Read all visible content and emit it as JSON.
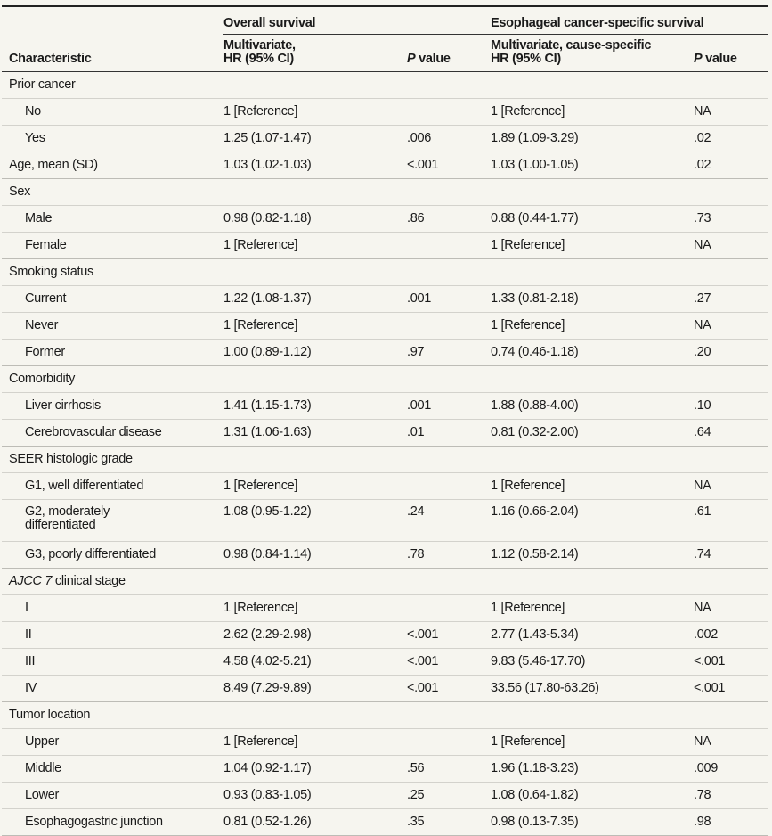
{
  "header": {
    "characteristic": "Characteristic",
    "overall_survival": "Overall survival",
    "ecss": "Esophageal cancer-specific survival",
    "os_hr": [
      "Multivariate,",
      "HR (95% CI)"
    ],
    "ecss_hr": [
      "Multivariate, cause-specific",
      "HR (95% CI)"
    ],
    "p_italic": "P",
    "p_rest": " value"
  },
  "rows": [
    {
      "label": "Prior cancer",
      "type": "group"
    },
    {
      "label": "No",
      "type": "item",
      "os_hr": "1 [Reference]",
      "os_p": "",
      "ec_hr": "1 [Reference]",
      "ec_p": "NA"
    },
    {
      "label": "Yes",
      "type": "item",
      "os_hr": "1.25 (1.07-1.47)",
      "os_p": ".006",
      "ec_hr": "1.89 (1.09-3.29)",
      "ec_p": ".02",
      "end": true
    },
    {
      "label": "Age, mean (SD)",
      "type": "single",
      "os_hr": "1.03 (1.02-1.03)",
      "os_p": "<.001",
      "ec_hr": "1.03 (1.00-1.05)",
      "ec_p": ".02",
      "end": true
    },
    {
      "label": "Sex",
      "type": "group"
    },
    {
      "label": "Male",
      "type": "item",
      "os_hr": "0.98 (0.82-1.18)",
      "os_p": ".86",
      "ec_hr": "0.88 (0.44-1.77)",
      "ec_p": ".73"
    },
    {
      "label": "Female",
      "type": "item",
      "os_hr": "1 [Reference]",
      "os_p": "",
      "ec_hr": "1 [Reference]",
      "ec_p": "NA",
      "end": true
    },
    {
      "label": "Smoking status",
      "type": "group"
    },
    {
      "label": "Current",
      "type": "item",
      "os_hr": "1.22 (1.08-1.37)",
      "os_p": ".001",
      "ec_hr": "1.33 (0.81-2.18)",
      "ec_p": ".27"
    },
    {
      "label": "Never",
      "type": "item",
      "os_hr": "1 [Reference]",
      "os_p": "",
      "ec_hr": "1 [Reference]",
      "ec_p": "NA"
    },
    {
      "label": "Former",
      "type": "item",
      "os_hr": "1.00 (0.89-1.12)",
      "os_p": ".97",
      "ec_hr": "0.74 (0.46-1.18)",
      "ec_p": ".20",
      "end": true
    },
    {
      "label": "Comorbidity",
      "type": "group"
    },
    {
      "label": "Liver cirrhosis",
      "type": "item",
      "os_hr": "1.41 (1.15-1.73)",
      "os_p": ".001",
      "ec_hr": "1.88 (0.88-4.00)",
      "ec_p": ".10"
    },
    {
      "label": "Cerebrovascular disease",
      "type": "item",
      "os_hr": "1.31 (1.06-1.63)",
      "os_p": ".01",
      "ec_hr": "0.81 (0.32-2.00)",
      "ec_p": ".64",
      "end": true
    },
    {
      "label": "SEER histologic grade",
      "type": "group"
    },
    {
      "label": "G1, well differentiated",
      "type": "item",
      "os_hr": "1 [Reference]",
      "os_p": "",
      "ec_hr": "1 [Reference]",
      "ec_p": "NA"
    },
    {
      "label": "G2, moderately differentiated",
      "type": "item",
      "tall": true,
      "os_hr": "1.08 (0.95-1.22)",
      "os_p": ".24",
      "ec_hr": "1.16 (0.66-2.04)",
      "ec_p": ".61"
    },
    {
      "label": "G3, poorly differentiated",
      "type": "item",
      "os_hr": "0.98 (0.84-1.14)",
      "os_p": ".78",
      "ec_hr": "1.12 (0.58-2.14)",
      "ec_p": ".74",
      "end": true
    },
    {
      "label_italic": "AJCC 7",
      "label": " clinical stage",
      "type": "group"
    },
    {
      "label": "I",
      "type": "item",
      "os_hr": "1 [Reference]",
      "os_p": "",
      "ec_hr": "1 [Reference]",
      "ec_p": "NA"
    },
    {
      "label": "II",
      "type": "item",
      "os_hr": "2.62 (2.29-2.98)",
      "os_p": "<.001",
      "ec_hr": "2.77 (1.43-5.34)",
      "ec_p": ".002"
    },
    {
      "label": "III",
      "type": "item",
      "os_hr": "4.58 (4.02-5.21)",
      "os_p": "<.001",
      "ec_hr": "9.83 (5.46-17.70)",
      "ec_p": "<.001"
    },
    {
      "label": "IV",
      "type": "item",
      "os_hr": "8.49 (7.29-9.89)",
      "os_p": "<.001",
      "ec_hr": "33.56 (17.80-63.26)",
      "ec_p": "<.001",
      "end": true
    },
    {
      "label": "Tumor location",
      "type": "group"
    },
    {
      "label": "Upper",
      "type": "item",
      "os_hr": "1 [Reference]",
      "os_p": "",
      "ec_hr": "1 [Reference]",
      "ec_p": "NA"
    },
    {
      "label": "Middle",
      "type": "item",
      "os_hr": "1.04 (0.92-1.17)",
      "os_p": ".56",
      "ec_hr": "1.96 (1.18-3.23)",
      "ec_p": ".009"
    },
    {
      "label": "Lower",
      "type": "item",
      "os_hr": "0.93 (0.83-1.05)",
      "os_p": ".25",
      "ec_hr": "1.08 (0.64-1.82)",
      "ec_p": ".78"
    },
    {
      "label": "Esophagogastric junction",
      "type": "item",
      "os_hr": "0.81 (0.52-1.26)",
      "os_p": ".35",
      "ec_hr": "0.98 (0.13-7.35)",
      "ec_p": ".98",
      "end": true
    }
  ]
}
